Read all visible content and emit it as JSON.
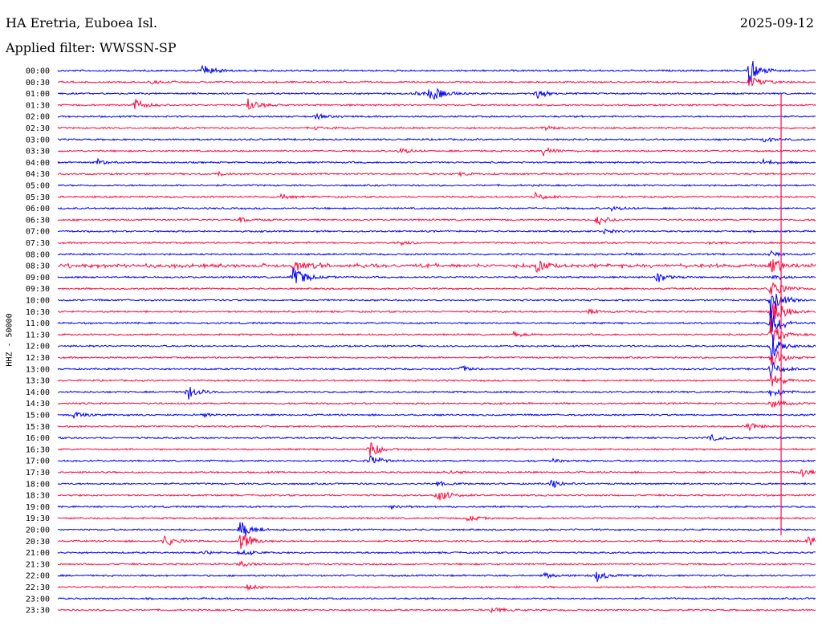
{
  "header": {
    "station": "HA Eretria, Euboea Isl.",
    "filter": "Applied filter: WWSSN-SP",
    "date": "2025-09-12"
  },
  "chart_data": {
    "type": "helicorder",
    "ylabel": "HHZ - 50000",
    "colors": {
      "even": "#0000ff",
      "odd": "#ff0a40"
    },
    "rows": [
      "00:00",
      "00:30",
      "01:00",
      "01:30",
      "02:00",
      "02:30",
      "03:00",
      "03:30",
      "04:00",
      "04:30",
      "05:00",
      "05:30",
      "06:00",
      "06:30",
      "07:00",
      "07:30",
      "08:00",
      "08:30",
      "09:00",
      "09:30",
      "10:00",
      "10:30",
      "11:00",
      "11:30",
      "12:00",
      "12:30",
      "13:00",
      "13:30",
      "14:00",
      "14:30",
      "15:00",
      "15:30",
      "16:00",
      "16:30",
      "17:00",
      "17:30",
      "18:00",
      "18:30",
      "19:00",
      "19:30",
      "20:00",
      "20:30",
      "21:00",
      "21:30",
      "22:00",
      "22:30",
      "23:00",
      "23:30"
    ],
    "events": [
      {
        "row": 0,
        "t": 0.19,
        "amp": 1.2
      },
      {
        "row": 0,
        "t": 0.91,
        "amp": 2.5
      },
      {
        "row": 1,
        "t": 0.91,
        "amp": 1.6
      },
      {
        "row": 1,
        "t": 0.12,
        "amp": 0.4
      },
      {
        "row": 2,
        "t": 0.49,
        "amp": 2.4
      },
      {
        "row": 2,
        "t": 0.63,
        "amp": 0.9
      },
      {
        "row": 2,
        "t": 0.47,
        "amp": 0.4
      },
      {
        "row": 3,
        "t": 0.1,
        "amp": 1.2
      },
      {
        "row": 3,
        "t": 0.25,
        "amp": 1.2
      },
      {
        "row": 4,
        "t": 0.34,
        "amp": 0.4
      },
      {
        "row": 5,
        "t": 0.34,
        "amp": 0.3
      },
      {
        "row": 5,
        "t": 0.64,
        "amp": 0.4
      },
      {
        "row": 6,
        "t": 0.93,
        "amp": 0.5
      },
      {
        "row": 7,
        "t": 0.45,
        "amp": 0.6
      },
      {
        "row": 7,
        "t": 0.64,
        "amp": 1.0
      },
      {
        "row": 8,
        "t": 0.05,
        "amp": 0.6
      },
      {
        "row": 8,
        "t": 0.93,
        "amp": 0.5
      },
      {
        "row": 9,
        "t": 0.21,
        "amp": 0.3
      },
      {
        "row": 9,
        "t": 0.53,
        "amp": 0.3
      },
      {
        "row": 11,
        "t": 0.29,
        "amp": 0.5
      },
      {
        "row": 11,
        "t": 0.63,
        "amp": 0.7
      },
      {
        "row": 12,
        "t": 0.73,
        "amp": 0.4
      },
      {
        "row": 13,
        "t": 0.24,
        "amp": 0.4
      },
      {
        "row": 13,
        "t": 0.71,
        "amp": 1.0
      },
      {
        "row": 14,
        "t": 0.72,
        "amp": 0.4
      },
      {
        "row": 15,
        "t": 0.45,
        "amp": 0.5
      },
      {
        "row": 15,
        "t": 0.86,
        "amp": 0.3
      },
      {
        "row": 16,
        "t": 0.94,
        "amp": 0.5
      },
      {
        "row": 16,
        "t": 0.75,
        "amp": 0.3
      },
      {
        "row": 17,
        "t": 0.31,
        "amp": 1.0
      },
      {
        "row": 17,
        "t": 0.63,
        "amp": 1.3
      },
      {
        "row": 17,
        "t": 0.94,
        "amp": 1.8
      },
      {
        "row": 18,
        "t": 0.31,
        "amp": 2.3
      },
      {
        "row": 18,
        "t": 0.79,
        "amp": 0.9
      },
      {
        "row": 18,
        "t": 0.94,
        "amp": 0.6
      },
      {
        "row": 19,
        "t": 0.94,
        "amp": 2.0
      },
      {
        "row": 20,
        "t": 0.94,
        "amp": 3.5
      },
      {
        "row": 21,
        "t": 0.7,
        "amp": 0.5
      },
      {
        "row": 21,
        "t": 0.94,
        "amp": 3.5
      },
      {
        "row": 22,
        "t": 0.94,
        "amp": 3.0
      },
      {
        "row": 23,
        "t": 0.6,
        "amp": 0.4
      },
      {
        "row": 23,
        "t": 0.94,
        "amp": 2.6
      },
      {
        "row": 24,
        "t": 0.94,
        "amp": 2.4
      },
      {
        "row": 25,
        "t": 0.94,
        "amp": 2.0
      },
      {
        "row": 26,
        "t": 0.53,
        "amp": 0.6
      },
      {
        "row": 26,
        "t": 0.94,
        "amp": 1.6
      },
      {
        "row": 27,
        "t": 0.94,
        "amp": 1.4
      },
      {
        "row": 28,
        "t": 0.17,
        "amp": 1.6
      },
      {
        "row": 28,
        "t": 0.94,
        "amp": 1.2
      },
      {
        "row": 29,
        "t": 0.94,
        "amp": 1.0
      },
      {
        "row": 30,
        "t": 0.02,
        "amp": 0.7
      },
      {
        "row": 30,
        "t": 0.19,
        "amp": 0.3
      },
      {
        "row": 31,
        "t": 0.91,
        "amp": 0.7
      },
      {
        "row": 32,
        "t": 0.86,
        "amp": 0.6
      },
      {
        "row": 33,
        "t": 0.41,
        "amp": 1.7
      },
      {
        "row": 34,
        "t": 0.41,
        "amp": 1.4
      },
      {
        "row": 34,
        "t": 0.65,
        "amp": 0.3
      },
      {
        "row": 35,
        "t": 0.51,
        "amp": 0.4
      },
      {
        "row": 35,
        "t": 0.98,
        "amp": 1.0
      },
      {
        "row": 36,
        "t": 0.65,
        "amp": 0.8
      },
      {
        "row": 36,
        "t": 0.5,
        "amp": 0.4
      },
      {
        "row": 37,
        "t": 0.5,
        "amp": 1.4
      },
      {
        "row": 38,
        "t": 0.44,
        "amp": 0.5
      },
      {
        "row": 39,
        "t": 0.54,
        "amp": 0.5
      },
      {
        "row": 40,
        "t": 0.24,
        "amp": 1.8
      },
      {
        "row": 41,
        "t": 0.14,
        "amp": 1.0
      },
      {
        "row": 41,
        "t": 0.24,
        "amp": 2.0
      },
      {
        "row": 41,
        "t": 0.99,
        "amp": 1.0
      },
      {
        "row": 42,
        "t": 0.19,
        "amp": 0.3
      },
      {
        "row": 42,
        "t": 0.24,
        "amp": 0.8
      },
      {
        "row": 43,
        "t": 0.24,
        "amp": 0.5
      },
      {
        "row": 44,
        "t": 0.64,
        "amp": 0.5
      },
      {
        "row": 44,
        "t": 0.71,
        "amp": 1.2
      },
      {
        "row": 45,
        "t": 0.25,
        "amp": 0.5
      },
      {
        "row": 47,
        "t": 0.57,
        "amp": 0.6
      }
    ],
    "spike_rows": [
      16,
      17
    ]
  }
}
